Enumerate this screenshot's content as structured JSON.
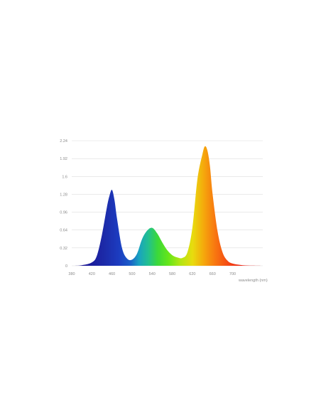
{
  "chart_data": {
    "type": "area",
    "title": "",
    "xlabel": "wavelength (nm)",
    "ylabel": "",
    "xlim": [
      380,
      760
    ],
    "ylim": [
      0,
      2.24
    ],
    "x_ticks": [
      "380",
      "420",
      "460",
      "500",
      "540",
      "580",
      "620",
      "660",
      "700"
    ],
    "y_ticks": [
      "0",
      "0.32",
      "0.64",
      "0.96",
      "1.28",
      "1.6",
      "1.92",
      "2.24"
    ],
    "grid": "horizontal",
    "fill": "spectral rainbow gradient (violet-blue to red)",
    "series": [
      {
        "x": [
          380,
          400,
          420,
          430,
          440,
          450,
          455,
          460,
          465,
          470,
          480,
          490,
          500,
          510,
          520,
          530,
          540,
          550,
          560,
          570,
          580,
          590,
          600,
          610,
          620,
          630,
          640,
          645,
          650,
          655,
          660,
          670,
          680,
          690,
          700,
          720,
          740,
          760
        ],
        "values": [
          0,
          0.01,
          0.06,
          0.18,
          0.55,
          1.05,
          1.25,
          1.36,
          1.18,
          0.85,
          0.32,
          0.13,
          0.11,
          0.22,
          0.48,
          0.63,
          0.68,
          0.58,
          0.42,
          0.28,
          0.19,
          0.15,
          0.14,
          0.24,
          0.68,
          1.55,
          2.0,
          2.14,
          2.06,
          1.78,
          1.3,
          0.62,
          0.24,
          0.09,
          0.04,
          0.01,
          0.003,
          0
        ]
      }
    ]
  }
}
